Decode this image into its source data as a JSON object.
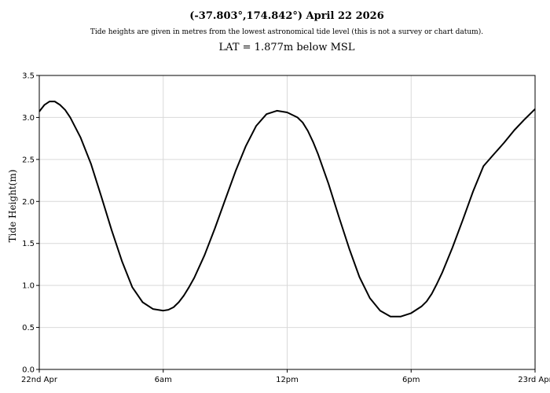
{
  "chart_data": {
    "type": "line",
    "title": "(-37.803°,174.842°) April 22 2026",
    "subtitle": "Tide heights are given in metres from the lowest astronomical tide level (this is not a survey or chart datum).",
    "note": "LAT = 1.877m below MSL",
    "xlabel": "",
    "ylabel": "Tide Height(m)",
    "ylim": [
      0,
      3.5
    ],
    "xlim": [
      0,
      24
    ],
    "grid": true,
    "yticks": [
      0.0,
      0.5,
      1.0,
      1.5,
      2.0,
      2.5,
      3.0,
      3.5
    ],
    "ytick_labels": [
      "0.0",
      "0.5",
      "1.0",
      "1.5",
      "2.0",
      "2.5",
      "3.0",
      "3.5"
    ],
    "xticks": [
      0,
      6,
      12,
      18,
      24
    ],
    "xtick_labels": [
      "22nd Apr",
      "6am",
      "12pm",
      "6pm",
      "23rd Apr"
    ],
    "series": [
      {
        "x": [
          0,
          0.25,
          0.5,
          0.75,
          1.0,
          1.25,
          1.5,
          2.0,
          2.5,
          3.0,
          3.5,
          4.0,
          4.5,
          5.0,
          5.5,
          6.0,
          6.25,
          6.5,
          6.75,
          7.0,
          7.25,
          7.5,
          8.0,
          8.5,
          9.0,
          9.5,
          10.0,
          10.5,
          11.0,
          11.5,
          12.0,
          12.5,
          12.75,
          13.0,
          13.25,
          13.5,
          14.0,
          14.5,
          15.0,
          15.5,
          16.0,
          16.5,
          17.0,
          17.5,
          18.0,
          18.5,
          18.75,
          19.0,
          19.25,
          19.5,
          20.0,
          20.5,
          21.0,
          21.5,
          22.0,
          22.5,
          23.0,
          23.5,
          24.0
        ],
        "values": [
          3.07,
          3.15,
          3.19,
          3.19,
          3.15,
          3.09,
          3.0,
          2.76,
          2.45,
          2.06,
          1.66,
          1.29,
          0.98,
          0.8,
          0.72,
          0.7,
          0.71,
          0.74,
          0.8,
          0.88,
          0.98,
          1.09,
          1.36,
          1.68,
          2.02,
          2.36,
          2.66,
          2.9,
          3.04,
          3.08,
          3.06,
          3.0,
          2.94,
          2.84,
          2.71,
          2.56,
          2.21,
          1.82,
          1.44,
          1.1,
          0.85,
          0.7,
          0.63,
          0.63,
          0.67,
          0.75,
          0.81,
          0.9,
          1.02,
          1.15,
          1.45,
          1.78,
          2.12,
          2.42,
          2.56,
          2.7,
          2.85,
          2.98,
          3.1
        ]
      }
    ]
  },
  "colors": {
    "line": "#000000",
    "grid": "#d9d9d9",
    "background": "#ffffff"
  }
}
